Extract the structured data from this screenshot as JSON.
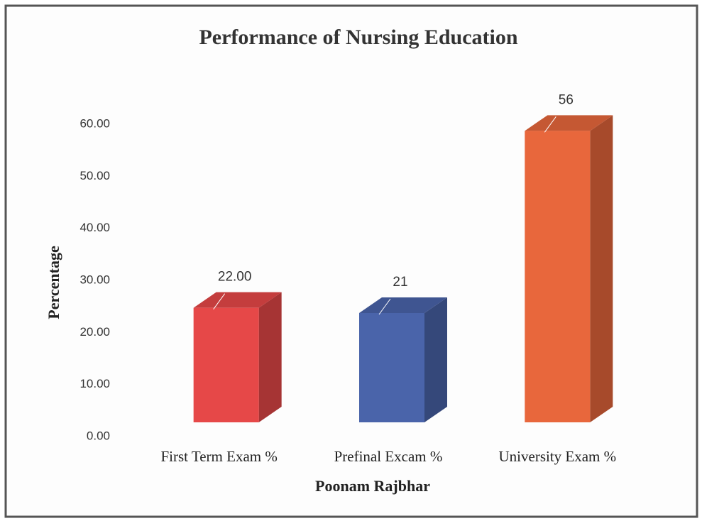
{
  "chart_data": {
    "type": "bar3d",
    "title": "Performance of Nursing Education",
    "y_label": "Percentage",
    "x_label": "Poonam Rajbhar",
    "categories": [
      "First Term Exam %",
      "Prefinal Excam %",
      "University Exam %"
    ],
    "values": [
      22,
      21,
      56
    ],
    "value_labels": [
      "22.00",
      "21",
      "56"
    ],
    "colors": [
      "#e64848",
      "#4a64aa",
      "#e8673c"
    ],
    "ylim": [
      0,
      60
    ],
    "yticks": [
      {
        "value": 0,
        "label": "0.00"
      },
      {
        "value": 10,
        "label": "10.00"
      },
      {
        "value": 20,
        "label": "20.00"
      },
      {
        "value": 30,
        "label": "30.00"
      },
      {
        "value": 40,
        "label": "40.00"
      },
      {
        "value": 50,
        "label": "50.00"
      },
      {
        "value": 60,
        "label": "60.00"
      }
    ],
    "grid": false
  }
}
